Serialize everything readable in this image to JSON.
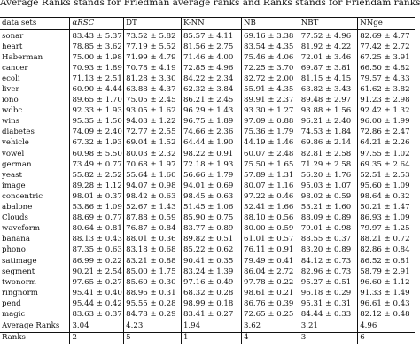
{
  "caption": "Average Ranks stands for Friedman average ranks and Ranks stands for Friendam ranks.",
  "header": {
    "datasets": "data sets",
    "m1": "αRSC",
    "m2": "DT",
    "m3": "K-NN",
    "m4": "NB",
    "m5": "NBT",
    "m6": "NNge"
  },
  "rows": [
    {
      "name": "sonar",
      "v": [
        "83.43 ± 5.37",
        "73.52 ± 5.82",
        "85.57 ± 4.11",
        "69.16 ± 3.38",
        "77.52 ± 4.96",
        "82.69 ± 4.77"
      ]
    },
    {
      "name": "heart",
      "v": [
        "78.85 ± 3.62",
        "77.19 ± 5.52",
        "81.56 ± 2.75",
        "83.54 ± 4.35",
        "81.92 ± 4.22",
        "77.42 ± 2.72"
      ]
    },
    {
      "name": "Haberman",
      "v": [
        "75.00 ± 1.98",
        "71.99 ± 4.79",
        "71.46 ± 4.00",
        "75.46 ± 4.06",
        "72.01 ± 3.46",
        "67.25 ± 3.91"
      ]
    },
    {
      "name": "cancer",
      "v": [
        "70.93 ± 1.89",
        "70.78 ± 4.19",
        "72.85 ± 4.96",
        "72.25 ± 3.70",
        "69.87 ± 3.81",
        "66.50 ± 4.82"
      ]
    },
    {
      "name": "ecoli",
      "v": [
        "71.13 ± 2.51",
        "81.28 ± 3.30",
        "84.22 ± 2.34",
        "82.72 ± 2.00",
        "81.15 ± 4.15",
        "79.57 ± 4.33"
      ]
    },
    {
      "name": "liver",
      "v": [
        "60.90 ± 4.44",
        "63.88 ± 4.37",
        "62.32 ± 3.84",
        "55.91 ± 4.35",
        "63.82 ± 3.43",
        "61.62 ± 3.82"
      ]
    },
    {
      "name": "iono",
      "v": [
        "89.65 ± 1.70",
        "75.05 ± 2.45",
        "86.21 ± 2.45",
        "89.91 ± 2.37",
        "89.48 ± 2.97",
        "91.23 ± 2.98"
      ]
    },
    {
      "name": "wdbc",
      "v": [
        "92.33 ± 1.93",
        "93.05 ± 1.62",
        "96.29 ± 1.43",
        "93.30 ± 1.27",
        "93.88 ± 1.56",
        "92.42 ± 1.32"
      ]
    },
    {
      "name": "wins",
      "v": [
        "95.35 ± 1.50",
        "94.03 ± 1.22",
        "96.75 ± 1.89",
        "97.09 ± 0.88",
        "96.21 ± 2.40",
        "96.00 ± 1.99"
      ]
    },
    {
      "name": "diabetes",
      "v": [
        "74.09 ± 2.40",
        "72.77 ± 2.55",
        "74.66 ± 2.36",
        "75.36 ± 1.79",
        "74.53 ± 1.84",
        "72.86 ± 2.47"
      ]
    },
    {
      "name": "vehicle",
      "v": [
        "67.32 ± 1.93",
        "69.04 ± 1.52",
        "64.44 ± 1.90",
        "44.19 ± 1.46",
        "69.86 ± 2.14",
        "64.21 ± 2.26"
      ]
    },
    {
      "name": "vowel",
      "v": [
        "60.98 ± 5.50",
        "80.03 ± 2.32",
        "98.22 ± 0.91",
        "60.07 ± 2.48",
        "82.81 ± 2.58",
        "97.55 ± 1.02"
      ]
    },
    {
      "name": "german",
      "v": [
        "73.49 ± 0.77",
        "70.68 ± 1.97",
        "72.18 ± 1.93",
        "75.50 ± 1.65",
        "71.29 ± 2.58",
        "69.35 ± 2.64"
      ]
    },
    {
      "name": "yeast",
      "v": [
        "55.82 ± 2.52",
        "55.64 ± 1.60",
        "56.66 ± 1.79",
        "57.89 ± 1.31",
        "56.20 ± 1.76",
        "52.51 ± 2.53"
      ]
    },
    {
      "name": "image",
      "v": [
        "89.28 ± 1.12",
        "94.07 ± 0.98",
        "94.01 ± 0.69",
        "80.07 ± 1.16",
        "95.03 ± 1.07",
        "95.60 ± 1.09"
      ]
    },
    {
      "name": "concentric",
      "v": [
        "98.01 ± 0.37",
        "98.42 ± 0.63",
        "98.45 ± 0.63",
        "97.22 ± 0.46",
        "98.02 ± 0.59",
        "98.64 ± 0.32"
      ]
    },
    {
      "name": "abalone",
      "v": [
        "53.86 ± 1.09",
        "52.67 ± 1.43",
        "51.45 ± 1.06",
        "52.41 ± 1.66",
        "53.21 ± 1.60",
        "50.21 ± 1.47"
      ]
    },
    {
      "name": "Clouds",
      "v": [
        "88.69 ± 0.77",
        "87.88 ± 0.59",
        "85.90 ± 0.75",
        "88.10 ± 0.56",
        "88.09 ± 0.89",
        "86.93 ± 1.09"
      ]
    },
    {
      "name": "waveform",
      "v": [
        "80.64 ± 0.81",
        "76.87 ± 0.84",
        "83.77 ± 0.89",
        "80.00 ± 0.59",
        "79.01 ± 0.98",
        "79.97 ± 1.25"
      ]
    },
    {
      "name": "banana",
      "v": [
        "88.13 ± 0.43",
        "88.01 ± 0.36",
        "89.82 ± 0.51",
        "61.01 ± 0.57",
        "88.55 ± 0.37",
        "88.21 ± 0.72"
      ]
    },
    {
      "name": "phono",
      "v": [
        "87.35 ± 0.63",
        "83.18 ± 0.68",
        "85.22 ± 0.62",
        "76.11 ± 0.91",
        "83.20 ± 0.89",
        "82.86 ± 0.84"
      ]
    },
    {
      "name": "satimage",
      "v": [
        "86.99 ± 0.22",
        "83.21 ± 0.88",
        "90.41 ± 0.35",
        "79.49 ± 0.41",
        "84.12 ± 0.73",
        "86.52 ± 0.81"
      ]
    },
    {
      "name": "segment",
      "v": [
        "90.21 ± 2.54",
        "85.00 ± 1.75",
        "83.24 ± 1.39",
        "86.04 ± 2.72",
        "82.96 ± 0.73",
        "58.79 ± 2.91"
      ]
    },
    {
      "name": "twonorm",
      "v": [
        "97.65 ± 0.27",
        "85.60 ± 0.30",
        "97.16 ± 0.49",
        "97.78 ± 0.22",
        "95.27 ± 0.51",
        "96.60 ± 1.12"
      ]
    },
    {
      "name": "ringnorm",
      "v": [
        "95.41 ± 0.40",
        "88.96 ± 0.31",
        "68.32 ± 0.28",
        "98.61 ± 0.21",
        "96.18 ± 0.29",
        "91.33 ± 1.49"
      ]
    },
    {
      "name": "pend",
      "v": [
        "95.44 ± 0.42",
        "95.55 ± 0.28",
        "98.99 ± 0.18",
        "86.76 ± 0.39",
        "95.31 ± 0.31",
        "96.61 ± 0.43"
      ]
    },
    {
      "name": "magic",
      "v": [
        "83.63 ± 0.37",
        "84.78 ± 0.29",
        "83.41 ± 0.27",
        "72.65 ± 0.25",
        "84.44 ± 0.33",
        "82.12 ± 0.48"
      ]
    }
  ],
  "average_ranks": {
    "label": "Average Ranks",
    "v": [
      "3.04",
      "4.23",
      "1.94",
      "3.62",
      "3.21",
      "4.96"
    ]
  },
  "ranks": {
    "label": "Ranks",
    "v": [
      "2",
      "5",
      "1",
      "4",
      "3",
      "6"
    ]
  }
}
